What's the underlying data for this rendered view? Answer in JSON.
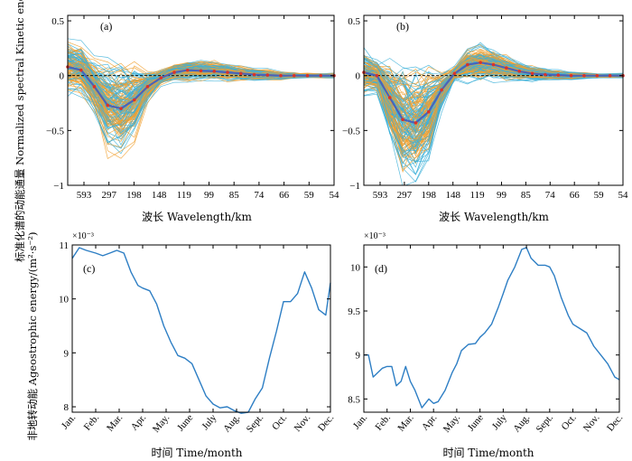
{
  "chart_data": [
    {
      "type": "line",
      "panel_label": "(a)",
      "x_tick_labels": [
        "593",
        "297",
        "198",
        "148",
        "119",
        "99",
        "85",
        "74",
        "66",
        "59",
        "54"
      ],
      "y_ticks": [
        -1,
        -0.5,
        0,
        0.5
      ],
      "y_tick_labels": [
        "−1",
        "−0.5",
        "0",
        "0.5"
      ],
      "ylim": [
        -1,
        0.55
      ],
      "xlabel": "波长 Wavelength/km",
      "ylabel": "标准化谱的动能通量 Normalized spectral Kinetic energy flux",
      "ensemble_colors": [
        "#f0a030",
        "#3cb0d8"
      ],
      "mean_color": "#4a63b8",
      "mean_marker_color": "#d9332b",
      "mean": [
        0.08,
        0.05,
        -0.1,
        -0.27,
        -0.3,
        -0.22,
        -0.1,
        -0.02,
        0.03,
        0.05,
        0.045,
        0.04,
        0.03,
        0.02,
        0.01,
        0.005,
        0.0,
        0.0,
        0.0,
        0.0,
        0.0
      ]
    },
    {
      "type": "line",
      "panel_label": "(b)",
      "x_tick_labels": [
        "593",
        "297",
        "198",
        "148",
        "119",
        "99",
        "85",
        "74",
        "66",
        "59",
        "54"
      ],
      "y_ticks": [
        -1,
        -0.5,
        0,
        0.5
      ],
      "y_tick_labels": [
        "−1",
        "−0.5",
        "0",
        "0.5"
      ],
      "ylim": [
        -1,
        0.55
      ],
      "xlabel": "波长 Wavelength/km",
      "ensemble_colors": [
        "#f0a030",
        "#3cb0d8"
      ],
      "mean_color": "#4a63b8",
      "mean_marker_color": "#d9332b",
      "mean": [
        0.03,
        0.0,
        -0.2,
        -0.4,
        -0.43,
        -0.33,
        -0.13,
        0.02,
        0.1,
        0.12,
        0.1,
        0.07,
        0.04,
        0.02,
        0.01,
        0.005,
        0.0,
        0.0,
        0.0,
        0.0,
        0.0
      ]
    },
    {
      "type": "line",
      "panel_label": "(c)",
      "scale_label": "×10⁻³",
      "categories": [
        "Jan.",
        "Feb.",
        "Mar.",
        "Apr.",
        "May.",
        "June",
        "July",
        "Aug.",
        "Sept.",
        "Oct.",
        "Nov.",
        "Dec."
      ],
      "ylim": [
        7.9,
        11.0
      ],
      "y_ticks": [
        8,
        9,
        10,
        11
      ],
      "y_tick_labels": [
        "8",
        "9",
        "10",
        "11"
      ],
      "xlabel": "时间 Time/month",
      "ylabel": "非地转动能 Ageostrophic energy/(m²·s⁻²)",
      "line_color": "#2d7ec4",
      "x": [
        0,
        0.3,
        0.6,
        1.0,
        1.3,
        1.6,
        1.9,
        2.2,
        2.5,
        2.8,
        3.0,
        3.3,
        3.6,
        3.9,
        4.2,
        4.5,
        4.8,
        5.1,
        5.4,
        5.7,
        6.0,
        6.3,
        6.6,
        6.9,
        7.2,
        7.5,
        7.8,
        8.1,
        8.4,
        8.7,
        9.0,
        9.3,
        9.6,
        9.9,
        10.2,
        10.5,
        10.8,
        11.0
      ],
      "y": [
        10.75,
        10.95,
        10.9,
        10.85,
        10.8,
        10.85,
        10.9,
        10.85,
        10.5,
        10.25,
        10.2,
        10.15,
        9.9,
        9.5,
        9.2,
        8.95,
        8.9,
        8.8,
        8.5,
        8.2,
        8.05,
        7.98,
        8.0,
        7.93,
        7.88,
        7.9,
        8.15,
        8.35,
        8.9,
        9.4,
        9.95,
        9.95,
        10.1,
        10.5,
        10.2,
        9.8,
        9.7,
        10.3
      ]
    },
    {
      "type": "line",
      "panel_label": "(d)",
      "scale_label": "×10⁻³",
      "categories": [
        "Jan.",
        "Feb.",
        "Mar.",
        "Apr.",
        "May.",
        "June",
        "July",
        "Aug.",
        "Sept.",
        "Oct.",
        "Nov.",
        "Dec."
      ],
      "ylim": [
        8.35,
        10.25
      ],
      "y_ticks": [
        8.5,
        9,
        9.5,
        10
      ],
      "y_tick_labels": [
        "8.5",
        "9",
        "9.5",
        "10"
      ],
      "xlabel": "时间 Time/month",
      "line_color": "#2d7ec4",
      "x": [
        0,
        0.2,
        0.4,
        0.6,
        0.8,
        1.0,
        1.2,
        1.4,
        1.6,
        1.8,
        2.0,
        2.2,
        2.5,
        2.8,
        3.0,
        3.2,
        3.5,
        3.8,
        4.0,
        4.2,
        4.5,
        4.8,
        5.0,
        5.2,
        5.5,
        5.8,
        6.0,
        6.2,
        6.5,
        6.8,
        7.0,
        7.2,
        7.5,
        7.8,
        8.0,
        8.2,
        8.5,
        8.8,
        9.0,
        9.3,
        9.6,
        9.9,
        10.2,
        10.5,
        10.8,
        11.0
      ],
      "y": [
        9.0,
        9.0,
        8.75,
        8.8,
        8.85,
        8.87,
        8.87,
        8.65,
        8.7,
        8.87,
        8.7,
        8.6,
        8.4,
        8.5,
        8.45,
        8.47,
        8.6,
        8.8,
        8.9,
        9.05,
        9.12,
        9.13,
        9.2,
        9.25,
        9.35,
        9.55,
        9.7,
        9.85,
        10.0,
        10.2,
        10.22,
        10.1,
        10.02,
        10.02,
        10.0,
        9.9,
        9.65,
        9.45,
        9.35,
        9.3,
        9.25,
        9.1,
        9.0,
        8.9,
        8.75,
        8.72
      ]
    }
  ]
}
